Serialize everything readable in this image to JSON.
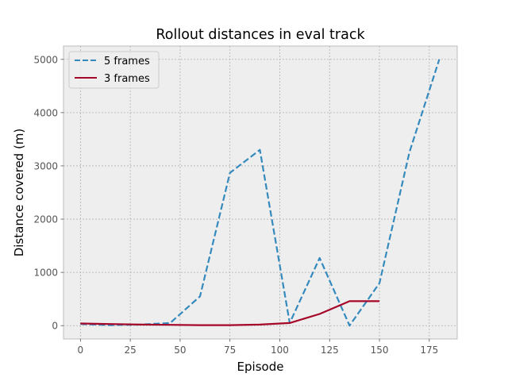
{
  "chart_data": {
    "type": "line",
    "title": "Rollout distances in eval track",
    "xlabel": "Episode",
    "ylabel": "Distance covered (m)",
    "xlim": [
      -8.5,
      189
    ],
    "ylim": [
      -250,
      5250
    ],
    "xticks": [
      0,
      25,
      50,
      75,
      100,
      125,
      150,
      175
    ],
    "yticks": [
      0,
      1000,
      2000,
      3000,
      4000,
      5000
    ],
    "grid": true,
    "legend_position": "top-left",
    "series": [
      {
        "name": "5 frames",
        "color": "#348ABD",
        "style": "dashed",
        "x": [
          0,
          15,
          30,
          45,
          60,
          75,
          90,
          105,
          120,
          135,
          150,
          165,
          180
        ],
        "y": [
          30,
          10,
          20,
          50,
          550,
          2870,
          3300,
          50,
          1270,
          0,
          800,
          3250,
          5000
        ]
      },
      {
        "name": "3 frames",
        "color": "#A60628",
        "style": "solid",
        "x": [
          0,
          15,
          30,
          45,
          60,
          75,
          90,
          105,
          120,
          135,
          150
        ],
        "y": [
          40,
          30,
          20,
          15,
          10,
          10,
          20,
          50,
          220,
          460,
          460
        ]
      }
    ]
  }
}
